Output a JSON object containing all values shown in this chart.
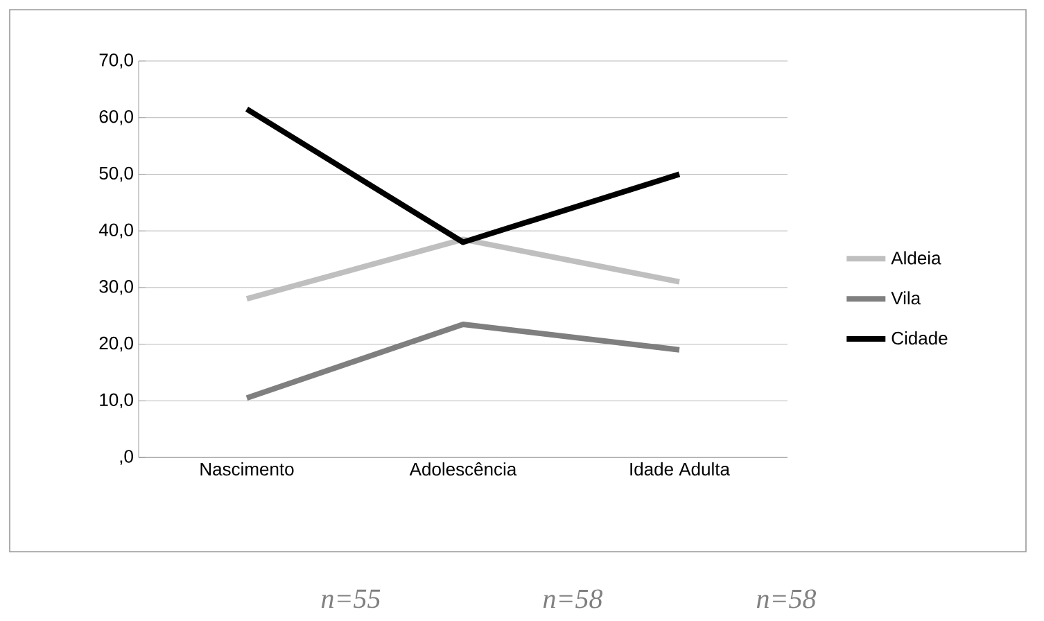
{
  "chart_data": {
    "type": "line",
    "categories": [
      "Nascimento",
      "Adolescência",
      "Idade Adulta"
    ],
    "series": [
      {
        "name": "Aldeia",
        "color": "#bfbfbf",
        "values": [
          28,
          38.5,
          31
        ]
      },
      {
        "name": "Vila",
        "color": "#7f7f7f",
        "values": [
          10.5,
          23.5,
          19
        ]
      },
      {
        "name": "Cidade",
        "color": "#000000",
        "values": [
          61.5,
          38,
          50
        ]
      }
    ],
    "ylim": [
      0,
      70
    ],
    "yticks": [
      {
        "value": 0,
        "label": ",0"
      },
      {
        "value": 10,
        "label": "10,0"
      },
      {
        "value": 20,
        "label": "20,0"
      },
      {
        "value": 30,
        "label": "30,0"
      },
      {
        "value": 40,
        "label": "40,0"
      },
      {
        "value": 50,
        "label": "50,0"
      },
      {
        "value": 60,
        "label": "60,0"
      },
      {
        "value": 70,
        "label": "70,0"
      }
    ],
    "grid": "y",
    "legend": "right",
    "marker": "none",
    "line_style": "solid",
    "annotations": [
      "n=55",
      "n=58",
      "n=58"
    ]
  }
}
